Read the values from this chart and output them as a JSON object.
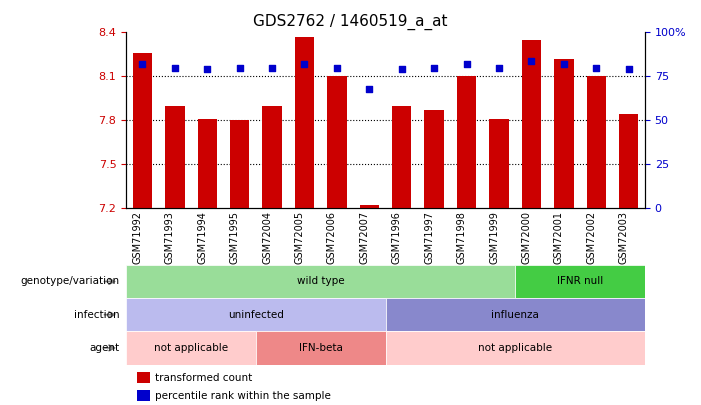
{
  "title": "GDS2762 / 1460519_a_at",
  "samples": [
    "GSM71992",
    "GSM71993",
    "GSM71994",
    "GSM71995",
    "GSM72004",
    "GSM72005",
    "GSM72006",
    "GSM72007",
    "GSM71996",
    "GSM71997",
    "GSM71998",
    "GSM71999",
    "GSM72000",
    "GSM72001",
    "GSM72002",
    "GSM72003"
  ],
  "bar_values": [
    8.26,
    7.9,
    7.81,
    7.8,
    7.9,
    8.37,
    8.1,
    7.22,
    7.9,
    7.87,
    8.1,
    7.81,
    8.35,
    8.22,
    8.1,
    7.84
  ],
  "dot_values": [
    82,
    80,
    79,
    80,
    80,
    82,
    80,
    68,
    79,
    80,
    82,
    80,
    84,
    82,
    80,
    79
  ],
  "ymin": 7.2,
  "ymax": 8.4,
  "yticks": [
    7.2,
    7.5,
    7.8,
    8.1,
    8.4
  ],
  "y2ticks": [
    0,
    25,
    50,
    75,
    100
  ],
  "bar_color": "#cc0000",
  "dot_color": "#0000cc",
  "bar_width": 0.6,
  "annotation_rows": [
    {
      "label": "genotype/variation",
      "segments": [
        {
          "text": "wild type",
          "start": 0,
          "end": 12,
          "color": "#99dd99"
        },
        {
          "text": "IFNR null",
          "start": 12,
          "end": 16,
          "color": "#44cc44"
        }
      ]
    },
    {
      "label": "infection",
      "segments": [
        {
          "text": "uninfected",
          "start": 0,
          "end": 8,
          "color": "#bbbbee"
        },
        {
          "text": "influenza",
          "start": 8,
          "end": 16,
          "color": "#8888cc"
        }
      ]
    },
    {
      "label": "agent",
      "segments": [
        {
          "text": "not applicable",
          "start": 0,
          "end": 4,
          "color": "#ffcccc"
        },
        {
          "text": "IFN-beta",
          "start": 4,
          "end": 8,
          "color": "#ee8888"
        },
        {
          "text": "not applicable",
          "start": 8,
          "end": 16,
          "color": "#ffcccc"
        }
      ]
    }
  ],
  "legend_items": [
    {
      "color": "#cc0000",
      "label": "transformed count"
    },
    {
      "color": "#0000cc",
      "label": "percentile rank within the sample"
    }
  ],
  "background_color": "#ffffff",
  "plot_bg_color": "#ffffff"
}
